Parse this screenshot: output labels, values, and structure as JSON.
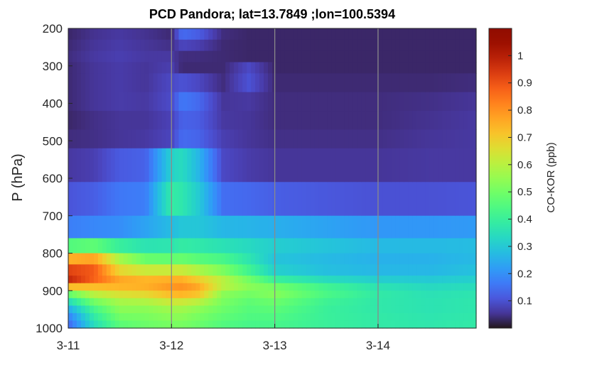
{
  "chart_data": {
    "type": "heatmap",
    "title": "PCD Pandora; lat=13.7849 ;lon=100.5394",
    "xlabel": "",
    "ylabel": "P (hPa)",
    "colorbar_label": "CO-KOR (ppb)",
    "colormap": "turbo",
    "x_ticks": [
      "3-11",
      "3-12",
      "3-13",
      "3-14"
    ],
    "x_range_days": [
      0,
      3.95
    ],
    "y_ticks": [
      "200",
      "300",
      "400",
      "500",
      "600",
      "700",
      "800",
      "900",
      "1000"
    ],
    "y_range": [
      200,
      1000
    ],
    "y_reversed": true,
    "color_range": [
      0,
      1.1
    ],
    "colorbar_ticks": [
      "0.1",
      "0.2",
      "0.3",
      "0.4",
      "0.5",
      "0.6",
      "0.7",
      "0.8",
      "0.9",
      "1"
    ],
    "pressure_levels": [
      200,
      230,
      260,
      290,
      320,
      370,
      420,
      470,
      520,
      610,
      700,
      760,
      800,
      830,
      860,
      880,
      900,
      920,
      940,
      960,
      980,
      1000
    ],
    "profiles": [
      {
        "x": 0.0,
        "v": [
          0.03,
          0.03,
          0.04,
          0.04,
          0.03,
          0.04,
          0.03,
          0.03,
          0.05,
          0.07,
          0.14,
          0.2,
          0.7,
          0.8,
          1.05,
          0.9,
          0.55,
          0.4,
          0.28,
          0.2,
          0.15,
          0.12
        ]
      },
      {
        "x": 0.25,
        "v": [
          0.05,
          0.05,
          0.06,
          0.06,
          0.05,
          0.06,
          0.05,
          0.04,
          0.05,
          0.09,
          0.15,
          0.22,
          0.72,
          0.82,
          0.95,
          0.8,
          0.65,
          0.55,
          0.45,
          0.4,
          0.36,
          0.33
        ]
      },
      {
        "x": 0.5,
        "v": [
          0.06,
          0.06,
          0.07,
          0.07,
          0.06,
          0.07,
          0.06,
          0.05,
          0.06,
          0.17,
          0.15,
          0.24,
          0.55,
          0.6,
          0.75,
          0.78,
          0.7,
          0.6,
          0.55,
          0.52,
          0.48,
          0.45
        ]
      },
      {
        "x": 0.75,
        "v": [
          0.05,
          0.05,
          0.06,
          0.06,
          0.05,
          0.06,
          0.06,
          0.05,
          0.07,
          0.18,
          0.16,
          0.3,
          0.42,
          0.55,
          0.7,
          0.78,
          0.72,
          0.62,
          0.55,
          0.52,
          0.5,
          0.48
        ]
      },
      {
        "x": 1.0,
        "v": [
          0.03,
          0.04,
          0.05,
          0.07,
          0.07,
          0.1,
          0.08,
          0.07,
          0.09,
          0.55,
          0.22,
          0.33,
          0.4,
          0.55,
          0.7,
          0.8,
          0.78,
          0.68,
          0.58,
          0.55,
          0.52,
          0.5
        ]
      },
      {
        "x": 1.1,
        "v": [
          0.16,
          0.12,
          0.04,
          0.04,
          0.03,
          0.17,
          0.15,
          0.1,
          0.18,
          0.5,
          0.24,
          0.35,
          0.42,
          0.55,
          0.7,
          0.8,
          0.8,
          0.68,
          0.58,
          0.55,
          0.52,
          0.5
        ]
      },
      {
        "x": 1.25,
        "v": [
          0.14,
          0.1,
          0.04,
          0.04,
          0.03,
          0.14,
          0.14,
          0.1,
          0.16,
          0.38,
          0.24,
          0.35,
          0.4,
          0.52,
          0.65,
          0.75,
          0.78,
          0.65,
          0.56,
          0.52,
          0.5,
          0.48
        ]
      },
      {
        "x": 1.5,
        "v": [
          0.04,
          0.04,
          0.03,
          0.04,
          0.03,
          0.05,
          0.06,
          0.06,
          0.08,
          0.09,
          0.2,
          0.33,
          0.38,
          0.48,
          0.55,
          0.65,
          0.55,
          0.52,
          0.5,
          0.48,
          0.46,
          0.44
        ]
      },
      {
        "x": 1.75,
        "v": [
          0.03,
          0.03,
          0.03,
          0.03,
          0.14,
          0.06,
          0.06,
          0.05,
          0.06,
          0.07,
          0.2,
          0.32,
          0.35,
          0.38,
          0.45,
          0.55,
          0.52,
          0.48,
          0.46,
          0.45,
          0.44,
          0.42
        ]
      },
      {
        "x": 2.0,
        "v": [
          0.03,
          0.03,
          0.03,
          0.03,
          0.03,
          0.04,
          0.04,
          0.04,
          0.05,
          0.06,
          0.18,
          0.32,
          0.3,
          0.28,
          0.35,
          0.45,
          0.55,
          0.5,
          0.48,
          0.45,
          0.44,
          0.42
        ]
      },
      {
        "x": 2.5,
        "v": [
          0.03,
          0.03,
          0.03,
          0.03,
          0.03,
          0.04,
          0.04,
          0.04,
          0.05,
          0.06,
          0.16,
          0.3,
          0.28,
          0.26,
          0.3,
          0.38,
          0.45,
          0.42,
          0.4,
          0.4,
          0.4,
          0.4
        ]
      },
      {
        "x": 3.0,
        "v": [
          0.03,
          0.03,
          0.03,
          0.03,
          0.03,
          0.04,
          0.04,
          0.04,
          0.05,
          0.06,
          0.14,
          0.28,
          0.26,
          0.25,
          0.28,
          0.34,
          0.38,
          0.38,
          0.37,
          0.38,
          0.38,
          0.38
        ]
      },
      {
        "x": 3.5,
        "v": [
          0.03,
          0.03,
          0.03,
          0.03,
          0.03,
          0.04,
          0.05,
          0.05,
          0.06,
          0.06,
          0.14,
          0.28,
          0.26,
          0.25,
          0.28,
          0.32,
          0.35,
          0.36,
          0.36,
          0.36,
          0.37,
          0.37
        ]
      },
      {
        "x": 3.95,
        "v": [
          0.03,
          0.03,
          0.03,
          0.03,
          0.03,
          0.05,
          0.06,
          0.06,
          0.06,
          0.06,
          0.15,
          0.28,
          0.27,
          0.27,
          0.3,
          0.33,
          0.36,
          0.37,
          0.37,
          0.37,
          0.38,
          0.38
        ]
      }
    ]
  }
}
